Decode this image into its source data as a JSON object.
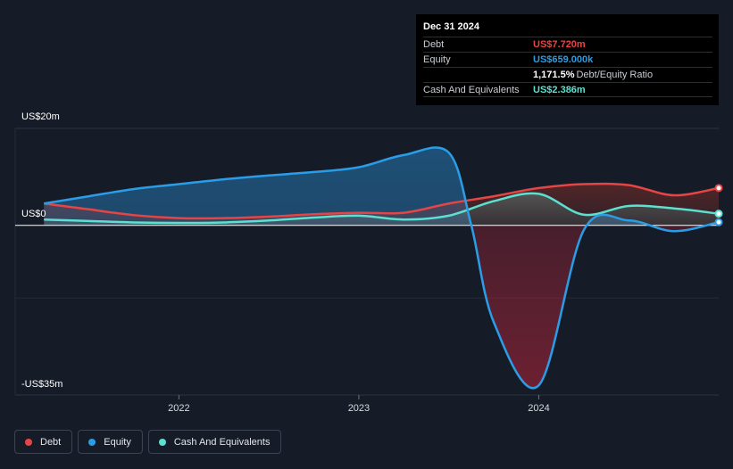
{
  "tooltip": {
    "date": "Dec 31 2024",
    "rows": [
      {
        "label": "Debt",
        "value": "US$7.720m",
        "color": "#e64545"
      },
      {
        "label": "Equity",
        "value": "US$659.000k",
        "color": "#2a9de8"
      },
      {
        "label": "",
        "value": "1,171.5%",
        "suffix": "Debt/Equity Ratio",
        "color": "#ffffff"
      },
      {
        "label": "Cash And Equivalents",
        "value": "US$2.386m",
        "color": "#5ce0cf"
      }
    ]
  },
  "y_axis_labels": {
    "top": "US$20m",
    "zero": "US$0",
    "bottom": "-US$35m"
  },
  "legend": [
    {
      "label": "Debt",
      "color": "#e64545"
    },
    {
      "label": "Equity",
      "color": "#2a9de8"
    },
    {
      "label": "Cash And Equivalents",
      "color": "#5ce0cf"
    }
  ],
  "chart_data": {
    "type": "area",
    "ylim": [
      -35,
      20
    ],
    "y_unit": "US$m",
    "x_ticks": [
      "2022",
      "2023",
      "2024"
    ],
    "x_tick_values": [
      2022.0,
      2023.0,
      2024.0
    ],
    "xlim": [
      2021.09,
      2025.0
    ],
    "grid": true,
    "legend_position": "bottom-left",
    "series": [
      {
        "name": "Debt",
        "color": "#e64545",
        "x": [
          2021.25,
          2021.5,
          2021.75,
          2022.0,
          2022.25,
          2022.5,
          2022.75,
          2023.0,
          2023.25,
          2023.5,
          2023.75,
          2024.0,
          2024.25,
          2024.5,
          2024.75,
          2025.0
        ],
        "values": [
          4.5,
          3.3,
          2.1,
          1.5,
          1.5,
          1.8,
          2.3,
          2.6,
          2.6,
          4.5,
          6.0,
          7.7,
          8.5,
          8.3,
          6.2,
          7.7
        ]
      },
      {
        "name": "Equity",
        "color": "#2a9de8",
        "x": [
          2021.25,
          2021.5,
          2021.75,
          2022.0,
          2022.25,
          2022.5,
          2022.75,
          2023.0,
          2023.25,
          2023.5,
          2023.625,
          2023.75,
          2024.0,
          2024.25,
          2024.5,
          2024.75,
          2025.0
        ],
        "values": [
          4.5,
          6.0,
          7.5,
          8.5,
          9.5,
          10.3,
          11.0,
          12.0,
          14.5,
          15.0,
          0.0,
          -20.0,
          -33.0,
          -1.0,
          1.0,
          -1.2,
          0.66
        ]
      },
      {
        "name": "Cash And Equivalents",
        "color": "#5ce0cf",
        "x": [
          2021.25,
          2021.5,
          2021.75,
          2022.0,
          2022.25,
          2022.5,
          2022.75,
          2023.0,
          2023.25,
          2023.5,
          2023.75,
          2024.0,
          2024.25,
          2024.5,
          2024.75,
          2025.0
        ],
        "values": [
          1.2,
          0.9,
          0.6,
          0.5,
          0.6,
          1.0,
          1.6,
          2.0,
          1.2,
          2.0,
          5.0,
          6.5,
          2.2,
          4.0,
          3.5,
          2.4
        ]
      }
    ]
  }
}
